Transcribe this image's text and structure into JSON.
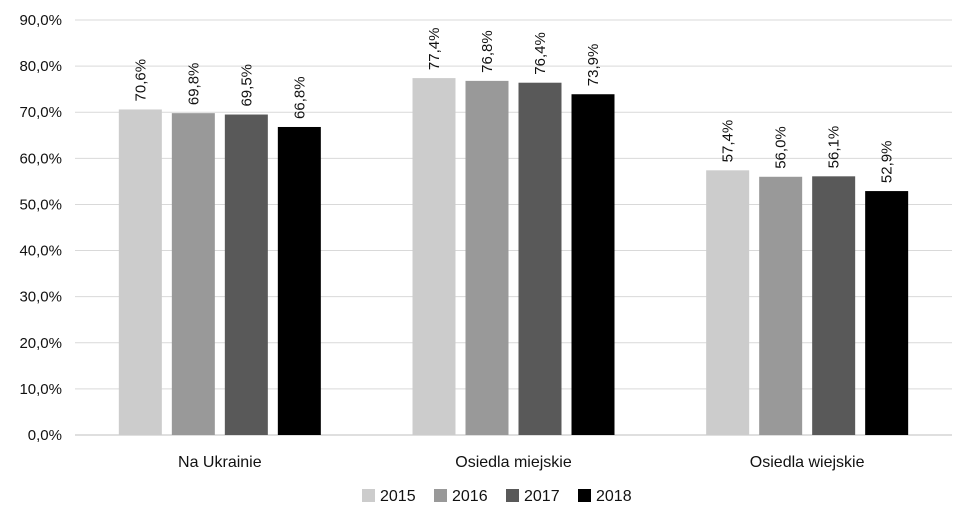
{
  "chart_data": {
    "type": "bar",
    "categories": [
      "Na Ukrainie",
      "Osiedla miejskie",
      "Osiedla wiejskie"
    ],
    "series": [
      {
        "name": "2015",
        "values": [
          70.6,
          77.4,
          57.4
        ],
        "labels": [
          "70,6%",
          "77,4%",
          "57,4%"
        ],
        "color": "#cccccc"
      },
      {
        "name": "2016",
        "values": [
          69.8,
          76.8,
          56.0
        ],
        "labels": [
          "69,8%",
          "76,8%",
          "56,0%"
        ],
        "color": "#999999"
      },
      {
        "name": "2017",
        "values": [
          69.5,
          76.4,
          56.1
        ],
        "labels": [
          "69,5%",
          "76,4%",
          "56,1%"
        ],
        "color": "#595959"
      },
      {
        "name": "2018",
        "values": [
          66.8,
          73.9,
          52.9
        ],
        "labels": [
          "66,8%",
          "73,9%",
          "52,9%"
        ],
        "color": "#000000"
      }
    ],
    "ylim": [
      0,
      90
    ],
    "yticks": [
      0,
      10,
      20,
      30,
      40,
      50,
      60,
      70,
      80,
      90
    ],
    "ytick_labels": [
      "0,0%",
      "10,0%",
      "20,0%",
      "30,0%",
      "40,0%",
      "50,0%",
      "60,0%",
      "70,0%",
      "80,0%",
      "90,0%"
    ],
    "grid": true,
    "legend_position": "bottom",
    "title": "",
    "xlabel": "",
    "ylabel": ""
  }
}
